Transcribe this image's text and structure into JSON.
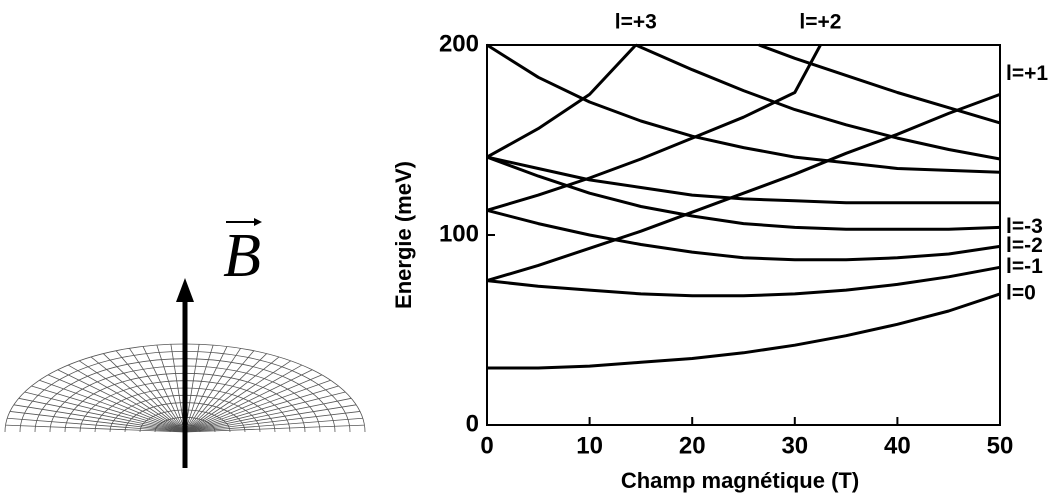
{
  "field_label": "B",
  "chart_data": {
    "type": "line",
    "x_label": "Champ magnétique (T)",
    "y_label": "Energie (meV)",
    "xlim": [
      0,
      50
    ],
    "xticks": [
      0,
      10,
      20,
      30,
      40,
      50
    ],
    "ylim": [
      0,
      200
    ],
    "yticks": [
      0,
      100,
      200
    ],
    "series": [
      {
        "name": "l=0",
        "color": "#000000",
        "x": [
          0,
          5,
          10,
          15,
          20,
          25,
          30,
          35,
          40,
          45,
          50
        ],
        "values": [
          30,
          30,
          31,
          33,
          35,
          38,
          42,
          47,
          53,
          60,
          69
        ]
      },
      {
        "name": "l=-1",
        "color": "#000000",
        "x": [
          0,
          5,
          10,
          15,
          20,
          25,
          30,
          35,
          40,
          45,
          50
        ],
        "values": [
          76,
          73,
          71,
          69,
          68,
          68,
          69,
          71,
          74,
          78,
          83
        ]
      },
      {
        "name": "l=-2",
        "color": "#000000",
        "x": [
          0,
          5,
          10,
          15,
          20,
          25,
          30,
          35,
          40,
          45,
          50
        ],
        "values": [
          113,
          106,
          100,
          95,
          91,
          88,
          87,
          87,
          88,
          90,
          94
        ]
      },
      {
        "name": "l=-3",
        "color": "#000000",
        "x": [
          0,
          5,
          10,
          15,
          20,
          25,
          30,
          35,
          40,
          45,
          50
        ],
        "values": [
          141,
          131,
          122,
          115,
          110,
          106,
          104,
          103,
          103,
          103,
          104
        ]
      },
      {
        "name": "l=+1",
        "color": "#000000",
        "x": [
          0,
          5,
          10,
          15,
          20,
          25,
          30,
          35,
          40,
          45,
          50
        ],
        "values": [
          76,
          84,
          93,
          102,
          112,
          122,
          132,
          143,
          153,
          164,
          174
        ]
      },
      {
        "name": "l=+2",
        "color": "#000000",
        "x": [
          0,
          5,
          10,
          15,
          20,
          25,
          30,
          32.5
        ],
        "values": [
          113,
          121,
          130,
          140,
          151,
          162,
          175,
          200
        ]
      },
      {
        "name": "l=+3",
        "color": "#000000",
        "x": [
          0,
          5,
          10,
          14.5
        ],
        "values": [
          141,
          156,
          174,
          200
        ]
      },
      {
        "color": "#000000",
        "x": [
          0,
          5,
          10,
          15,
          20,
          25,
          30,
          35,
          40,
          45,
          50
        ],
        "values": [
          141,
          135,
          129,
          125,
          121,
          119,
          118,
          117,
          117,
          117,
          117
        ]
      },
      {
        "color": "#000000",
        "x": [
          0,
          5,
          10,
          15,
          20,
          25,
          30,
          35,
          40,
          45,
          50
        ],
        "values": [
          200,
          183,
          170,
          160,
          152,
          146,
          141,
          138,
          135,
          134,
          133
        ]
      },
      {
        "color": "#000000",
        "x": [
          14.5,
          20,
          25,
          30,
          35,
          40,
          45,
          50
        ],
        "values": [
          200,
          187,
          176,
          166,
          158,
          151,
          145,
          140
        ]
      },
      {
        "color": "#000000",
        "x": [
          26.5,
          30,
          35,
          40,
          45,
          50
        ],
        "values": [
          200,
          193,
          184,
          175,
          167,
          159
        ]
      }
    ]
  }
}
